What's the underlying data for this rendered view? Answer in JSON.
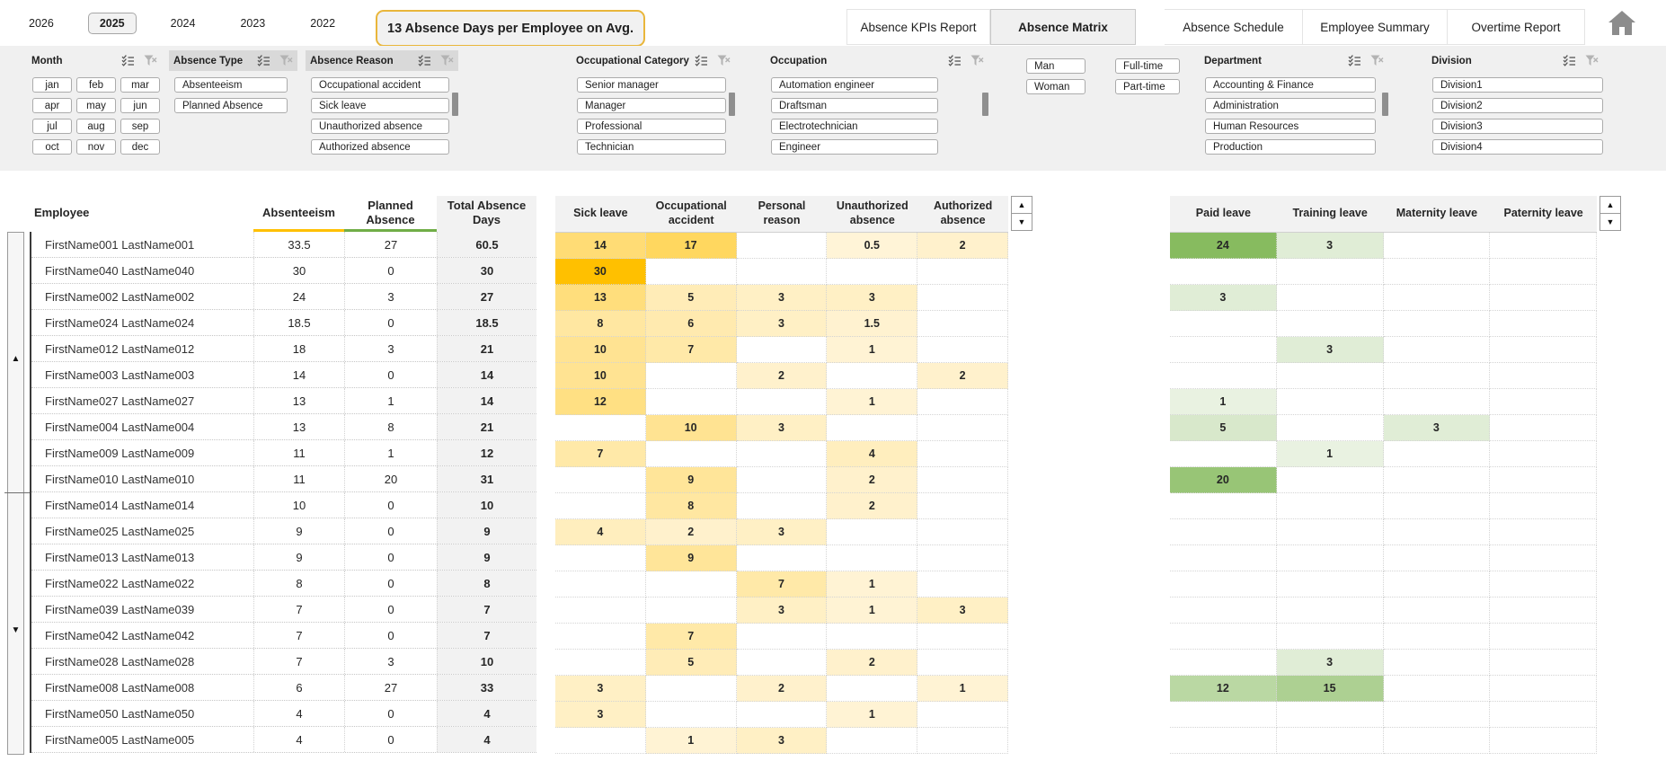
{
  "topbar": {
    "year_tabs": [
      "2026",
      "2025",
      "2024",
      "2023",
      "2022"
    ],
    "selected_year": "2025",
    "kpi_badge": "13 Absence Days per Employee on Avg.",
    "sheet_tabs": [
      "Absence KPIs Report",
      "Absence Matrix",
      "Absence Schedule",
      "Employee Summary",
      "Overtime Report"
    ],
    "active_sheet_tab": "Absence Matrix"
  },
  "slicers": [
    {
      "title": "Month",
      "items": [
        "jan",
        "feb",
        "mar",
        "apr",
        "may",
        "jun",
        "jul",
        "aug",
        "sep",
        "oct",
        "nov",
        "dec"
      ]
    },
    {
      "title": "Absence Type",
      "items": [
        "Absenteeism",
        "Planned Absence"
      ]
    },
    {
      "title": "Absence Reason",
      "items": [
        "Occupational accident",
        "Sick leave",
        "Unauthorized absence",
        "Authorized absence"
      ]
    },
    {
      "title": "Occupational Category",
      "items": [
        "Senior manager",
        "Manager",
        "Professional",
        "Technician"
      ]
    },
    {
      "title": "Occupation",
      "items": [
        "Automation engineer",
        "Draftsman",
        "Electrotechnician",
        "Engineer"
      ]
    },
    {
      "title": "",
      "items": [
        "Man",
        "Woman"
      ]
    },
    {
      "title": "",
      "items": [
        "Full-time",
        "Part-time"
      ]
    },
    {
      "title": "Department",
      "items": [
        "Accounting & Finance",
        "Administration",
        "Human Resources",
        "Production"
      ]
    },
    {
      "title": "Division",
      "items": [
        "Division1",
        "Division2",
        "Division3",
        "Division4"
      ]
    }
  ],
  "employee_table": {
    "headers": [
      "Employee",
      "Absenteeism",
      "Planned Absence",
      "Total Absence Days"
    ],
    "rows": [
      {
        "name": "FirstName001 LastName001",
        "absenteeism": 33.5,
        "planned": 27,
        "total": 60.5
      },
      {
        "name": "FirstName040 LastName040",
        "absenteeism": 30,
        "planned": 0,
        "total": 30
      },
      {
        "name": "FirstName002 LastName002",
        "absenteeism": 24,
        "planned": 3,
        "total": 27
      },
      {
        "name": "FirstName024 LastName024",
        "absenteeism": 18.5,
        "planned": 0,
        "total": 18.5
      },
      {
        "name": "FirstName012 LastName012",
        "absenteeism": 18,
        "planned": 3,
        "total": 21
      },
      {
        "name": "FirstName003 LastName003",
        "absenteeism": 14,
        "planned": 0,
        "total": 14
      },
      {
        "name": "FirstName027 LastName027",
        "absenteeism": 13,
        "planned": 1,
        "total": 14
      },
      {
        "name": "FirstName004 LastName004",
        "absenteeism": 13,
        "planned": 8,
        "total": 21
      },
      {
        "name": "FirstName009 LastName009",
        "absenteeism": 11,
        "planned": 1,
        "total": 12
      },
      {
        "name": "FirstName010 LastName010",
        "absenteeism": 11,
        "planned": 20,
        "total": 31
      },
      {
        "name": "FirstName014 LastName014",
        "absenteeism": 10,
        "planned": 0,
        "total": 10
      },
      {
        "name": "FirstName025 LastName025",
        "absenteeism": 9,
        "planned": 0,
        "total": 9
      },
      {
        "name": "FirstName013 LastName013",
        "absenteeism": 9,
        "planned": 0,
        "total": 9
      },
      {
        "name": "FirstName022 LastName022",
        "absenteeism": 8,
        "planned": 0,
        "total": 8
      },
      {
        "name": "FirstName039 LastName039",
        "absenteeism": 7,
        "planned": 0,
        "total": 7
      },
      {
        "name": "FirstName042 LastName042",
        "absenteeism": 7,
        "planned": 0,
        "total": 7
      },
      {
        "name": "FirstName028 LastName028",
        "absenteeism": 7,
        "planned": 3,
        "total": 10
      },
      {
        "name": "FirstName008 LastName008",
        "absenteeism": 6,
        "planned": 27,
        "total": 33
      },
      {
        "name": "FirstName050 LastName050",
        "absenteeism": 4,
        "planned": 0,
        "total": 4
      },
      {
        "name": "FirstName005 LastName005",
        "absenteeism": 4,
        "planned": 0,
        "total": 4
      }
    ]
  },
  "reason_matrix": {
    "columns": [
      "Sick leave",
      "Occupational accident",
      "Personal reason",
      "Unauthorized absence",
      "Authorized absence"
    ],
    "rows": [
      [
        14,
        17,
        null,
        0.5,
        2
      ],
      [
        30,
        null,
        null,
        null,
        null
      ],
      [
        13,
        5,
        3,
        3,
        null
      ],
      [
        8,
        6,
        3,
        1.5,
        null
      ],
      [
        10,
        7,
        null,
        1,
        null
      ],
      [
        10,
        null,
        2,
        null,
        2
      ],
      [
        12,
        null,
        null,
        1,
        null
      ],
      [
        null,
        10,
        3,
        null,
        null
      ],
      [
        7,
        null,
        null,
        4,
        null
      ],
      [
        null,
        9,
        null,
        2,
        null
      ],
      [
        null,
        8,
        null,
        2,
        null
      ],
      [
        4,
        2,
        3,
        null,
        null
      ],
      [
        null,
        9,
        null,
        null,
        null
      ],
      [
        null,
        null,
        7,
        1,
        null
      ],
      [
        null,
        null,
        3,
        1,
        3
      ],
      [
        null,
        7,
        null,
        null,
        null
      ],
      [
        null,
        5,
        null,
        2,
        null
      ],
      [
        3,
        null,
        2,
        null,
        1
      ],
      [
        3,
        null,
        null,
        1,
        null
      ],
      [
        null,
        1,
        3,
        null,
        null
      ]
    ],
    "color_low": "#FFF5DB",
    "color_high": "#FFC000",
    "max_value": 30
  },
  "leave_matrix": {
    "columns": [
      "Paid leave",
      "Training leave",
      "Maternity leave",
      "Paternity leave"
    ],
    "rows": [
      [
        24,
        3,
        null,
        null
      ],
      [
        null,
        null,
        null,
        null
      ],
      [
        3,
        null,
        null,
        null
      ],
      [
        null,
        null,
        null,
        null
      ],
      [
        null,
        3,
        null,
        null
      ],
      [
        null,
        null,
        null,
        null
      ],
      [
        1,
        null,
        null,
        null
      ],
      [
        5,
        null,
        3,
        null
      ],
      [
        null,
        1,
        null,
        null
      ],
      [
        20,
        null,
        null,
        null
      ],
      [
        null,
        null,
        null,
        null
      ],
      [
        null,
        null,
        null,
        null
      ],
      [
        null,
        null,
        null,
        null
      ],
      [
        null,
        null,
        null,
        null
      ],
      [
        null,
        null,
        null,
        null
      ],
      [
        null,
        null,
        null,
        null
      ],
      [
        null,
        3,
        null,
        null
      ],
      [
        12,
        15,
        null,
        null
      ],
      [
        null,
        null,
        null,
        null
      ],
      [
        null,
        null,
        null,
        null
      ]
    ],
    "color_low": "#EDF4E7",
    "color_high": "#87BB5F",
    "max_value": 24
  }
}
